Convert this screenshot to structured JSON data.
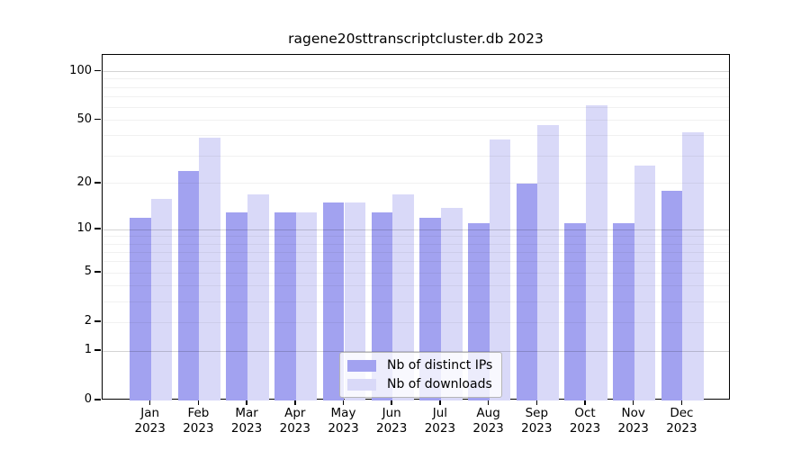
{
  "chart_data": {
    "type": "bar",
    "title": "ragene20sttranscriptcluster.db 2023",
    "categories": [
      "Jan 2023",
      "Feb 2023",
      "Mar 2023",
      "Apr 2023",
      "May 2023",
      "Jun 2023",
      "Jul 2023",
      "Aug 2023",
      "Sep 2023",
      "Oct 2023",
      "Nov 2023",
      "Dec 2023"
    ],
    "series": [
      {
        "name": "Nb of distinct IPs",
        "color": "#a2a2f0",
        "values": [
          12,
          24,
          13,
          13,
          15,
          13,
          12,
          11,
          20,
          11,
          11,
          18
        ]
      },
      {
        "name": "Nb of downloads",
        "color": "#d9d9f8",
        "values": [
          16,
          39,
          17,
          13,
          15,
          17,
          14,
          38,
          47,
          62,
          26,
          42
        ]
      }
    ],
    "y_axis": {
      "scale": "log10(value+1)",
      "labeled_ticks": [
        0,
        1,
        2,
        5,
        10,
        20,
        50,
        100
      ],
      "minor_gridlines": [
        2,
        3,
        4,
        5,
        6,
        7,
        8,
        9,
        20,
        30,
        40,
        50,
        60,
        70,
        80,
        90
      ],
      "major_gridlines": [
        1,
        10,
        100
      ],
      "ylim": [
        0,
        120
      ]
    },
    "x_axis": {
      "year_line": "2023"
    },
    "legend": {
      "position": "bottom-center",
      "entries": [
        "Nb of distinct IPs",
        "Nb of downloads"
      ]
    },
    "grid": true
  }
}
